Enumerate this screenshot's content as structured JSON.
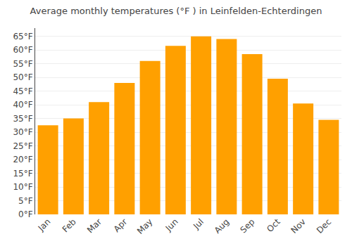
{
  "chart_data": {
    "type": "bar",
    "title": "Average monthly temperatures (°F ) in Leinfelden-Echterdingen",
    "categories": [
      "Jan",
      "Feb",
      "Mar",
      "Apr",
      "May",
      "Jun",
      "Jul",
      "Aug",
      "Sep",
      "Oct",
      "Nov",
      "Dec"
    ],
    "values": [
      32.5,
      35,
      41,
      48,
      56,
      61.5,
      65,
      64,
      58.5,
      49.5,
      40.5,
      34.5
    ],
    "color": "#FFA000",
    "ylim": [
      0,
      68
    ],
    "yticks": [
      {
        "value": 0,
        "label": "0°F"
      },
      {
        "value": 5,
        "label": "5°F"
      },
      {
        "value": 10,
        "label": "10°F"
      },
      {
        "value": 15,
        "label": "15°F"
      },
      {
        "value": 20,
        "label": "20°F"
      },
      {
        "value": 25,
        "label": "25°F"
      },
      {
        "value": 30,
        "label": "30°F"
      },
      {
        "value": 35,
        "label": "35°F"
      },
      {
        "value": 40,
        "label": "40°F"
      },
      {
        "value": 45,
        "label": "45°F"
      },
      {
        "value": 50,
        "label": "50°F"
      },
      {
        "value": 55,
        "label": "55°F"
      },
      {
        "value": 60,
        "label": "60°F"
      },
      {
        "value": 65,
        "label": "65°F"
      }
    ],
    "grid": true
  }
}
